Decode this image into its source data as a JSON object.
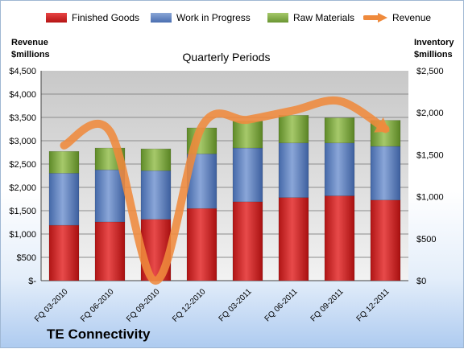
{
  "chart_data": {
    "type": "bar",
    "stacked": true,
    "title": "Quarterly Periods",
    "company": "TE Connectivity",
    "left_axis_label": [
      "Revenue",
      "$millions"
    ],
    "right_axis_label": [
      "Inventory",
      "$millions"
    ],
    "categories": [
      "FQ 03-2010",
      "FQ 06-2010",
      "FQ 09-2010",
      "FQ 12-2010",
      "FQ 03-2011",
      "FQ 06-2011",
      "FQ 09-2011",
      "FQ 12-2011"
    ],
    "series": [
      {
        "name": "Finished Goods",
        "axis": "right",
        "color": "#d91e1e",
        "values": [
          660,
          700,
          730,
          860,
          940,
          990,
          1010,
          960
        ]
      },
      {
        "name": "Work in Progress",
        "axis": "right",
        "color": "#5a7fc0",
        "values": [
          620,
          620,
          580,
          650,
          640,
          650,
          630,
          640
        ]
      },
      {
        "name": "Raw Materials",
        "axis": "right",
        "color": "#7aa63a",
        "values": [
          260,
          260,
          260,
          310,
          320,
          330,
          300,
          310
        ]
      },
      {
        "name": "Revenue",
        "axis": "left",
        "type": "line",
        "color": "#ef8a3c",
        "values": [
          2900,
          3200,
          0,
          3300,
          3450,
          3650,
          3850,
          3250
        ]
      }
    ],
    "left_ticks": [
      "$4,500",
      "$4,000",
      "$3,500",
      "$3,000",
      "$2,500",
      "$2,000",
      "$1,500",
      "$1,000",
      "$500",
      "$-"
    ],
    "right_ticks": [
      "$2,500",
      "$2,000",
      "$1,500",
      "$1,000",
      "$500",
      "$0"
    ],
    "ylim_left": [
      0,
      4500
    ],
    "ylim_right": [
      0,
      2500
    ],
    "legend_position": "top",
    "grid": true
  }
}
